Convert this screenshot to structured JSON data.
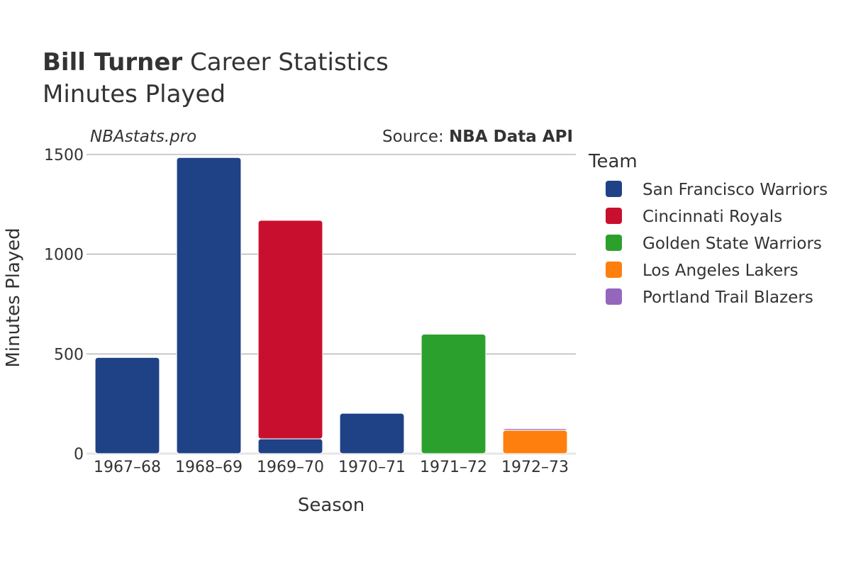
{
  "header": {
    "title_player": "Bill Turner",
    "title_rest": "Career Statistics",
    "subtitle": "Minutes Played"
  },
  "watermark": "NBAstats.pro",
  "source": {
    "prefix": "Source: ",
    "name": "NBA Data API"
  },
  "legend": {
    "title": "Team",
    "items": [
      {
        "label": "San Francisco Warriors",
        "color": "#1f4287"
      },
      {
        "label": "Cincinnati Royals",
        "color": "#c8102e"
      },
      {
        "label": "Golden State Warriors",
        "color": "#2ca02c"
      },
      {
        "label": "Los Angeles Lakers",
        "color": "#ff7f0e"
      },
      {
        "label": "Portland Trail Blazers",
        "color": "#9467bd"
      }
    ]
  },
  "chart_data": {
    "type": "bar",
    "stacked": true,
    "categories": [
      "1967–68",
      "1968–69",
      "1969–70",
      "1970–71",
      "1971–72",
      "1972–73"
    ],
    "xlabel": "Season",
    "ylabel": "Minutes Played",
    "ylim": [
      0,
      1500
    ],
    "yticks": [
      0,
      500,
      1000,
      1500
    ],
    "grid": true,
    "legend_position": "right",
    "series": [
      {
        "name": "San Francisco Warriors",
        "color": "#1f4287",
        "values": [
          482,
          1485,
          74,
          202,
          0,
          0
        ]
      },
      {
        "name": "Cincinnati Royals",
        "color": "#c8102e",
        "values": [
          0,
          0,
          1096,
          0,
          0,
          0
        ]
      },
      {
        "name": "Golden State Warriors",
        "color": "#2ca02c",
        "values": [
          0,
          0,
          0,
          0,
          599,
          0
        ]
      },
      {
        "name": "Los Angeles Lakers",
        "color": "#ff7f0e",
        "values": [
          0,
          0,
          0,
          0,
          0,
          117
        ]
      },
      {
        "name": "Portland Trail Blazers",
        "color": "#9467bd",
        "values": [
          0,
          0,
          0,
          0,
          0,
          8
        ]
      }
    ]
  }
}
